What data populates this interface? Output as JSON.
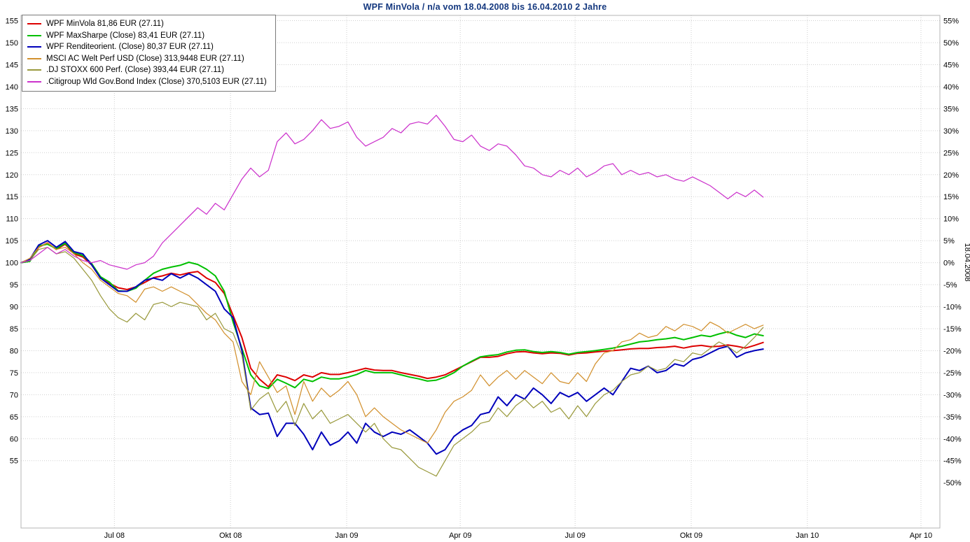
{
  "colors": {
    "title": "#14387f",
    "grid": "#cfcfcf",
    "plot_border": "#b4b4b4",
    "axis_text": "#000000",
    "legend_border": "#7a7a7a"
  },
  "chart_data": {
    "type": "line",
    "title": "WPF MinVola / n/a vom 18.04.2008 bis 16.04.2010 2 Jahre",
    "sampling": "weekly points, index normalized to 100 at 18.04.2008, data ends 27.11.2009",
    "x_axis": {
      "start_date": "18.04.2008",
      "end_date": "16.04.2010",
      "range_label": "2 Jahre",
      "total_days": 728,
      "tick_labels": [
        "Jul 08",
        "Okt 08",
        "Jan 09",
        "Apr 09",
        "Jul 09",
        "Okt 09",
        "Jan 10",
        "Apr 10"
      ],
      "tick_day_offsets": [
        74,
        166,
        258,
        348,
        439,
        531,
        623,
        713
      ]
    },
    "y_axis_left": {
      "min": 55,
      "max": 155,
      "step": 5
    },
    "y_axis_right": {
      "min": -50,
      "max": 55,
      "step": 5,
      "unit": "%",
      "reference_date": "18.04.2008"
    },
    "grid": true,
    "legend_position": "top-left",
    "series": [
      {
        "name": "WPF-MinVola",
        "legend": "WPF MinVola 81,86 EUR (27.11)",
        "color": "#dd0000",
        "width": 2,
        "values": [
          100,
          100.5,
          103.5,
          104.5,
          103.0,
          104.2,
          102.0,
          101.3,
          99.5,
          96.5,
          95.3,
          94.3,
          93.9,
          94.5,
          95.5,
          96.6,
          97.0,
          97.6,
          97.2,
          97.7,
          98.0,
          96.5,
          95.5,
          93.0,
          88.0,
          83.0,
          76.0,
          73.5,
          71.8,
          74.5,
          74.0,
          73.2,
          74.5,
          74.0,
          75.0,
          74.6,
          74.6,
          75.0,
          75.5,
          76.0,
          75.6,
          75.5,
          75.5,
          75.0,
          74.6,
          74.2,
          73.7,
          74.0,
          74.5,
          75.5,
          76.5,
          77.5,
          78.5,
          78.5,
          78.7,
          79.3,
          79.7,
          79.8,
          79.5,
          79.3,
          79.5,
          79.4,
          79.0,
          79.4,
          79.5,
          79.7,
          79.9,
          80.0,
          80.2,
          80.4,
          80.5,
          80.5,
          80.7,
          80.8,
          81.0,
          80.6,
          81.0,
          81.2,
          80.9,
          81.0,
          81.3,
          81.0,
          80.6,
          81.2,
          81.86
        ]
      },
      {
        "name": "WPF-MaxSharpe",
        "legend": "WPF MaxSharpe (Close) 83,41 EUR (27.11)",
        "color": "#00c000",
        "width": 2,
        "values": [
          100,
          100.3,
          103.8,
          104.2,
          103.2,
          104.4,
          102.3,
          101.6,
          99.8,
          96.8,
          95.6,
          93.6,
          93.5,
          94.2,
          96.0,
          97.6,
          98.5,
          99.0,
          99.4,
          100.1,
          99.6,
          98.5,
          97.0,
          93.5,
          86.5,
          80.5,
          74.5,
          72.0,
          71.4,
          73.5,
          72.6,
          71.6,
          73.5,
          73.0,
          74.0,
          73.6,
          73.6,
          74.0,
          74.6,
          75.5,
          75.0,
          75.0,
          75.0,
          74.5,
          74.0,
          73.6,
          73.1,
          73.3,
          74.0,
          75.0,
          76.5,
          77.6,
          78.6,
          78.9,
          79.1,
          79.7,
          80.1,
          80.2,
          79.8,
          79.6,
          79.8,
          79.6,
          79.2,
          79.6,
          79.8,
          80.0,
          80.3,
          80.6,
          81.0,
          81.5,
          82.0,
          82.2,
          82.5,
          82.7,
          83.0,
          82.5,
          83.0,
          83.5,
          83.2,
          83.8,
          84.3,
          83.5,
          83.0,
          83.8,
          83.41
        ]
      },
      {
        "name": "WPF-Renditeorient",
        "legend": "WPF Renditeorient. (Close) 80,37 EUR (27.11)",
        "color": "#0000bb",
        "width": 2,
        "values": [
          100,
          100.8,
          104.0,
          105.0,
          103.5,
          104.8,
          102.5,
          102.0,
          99.5,
          96.5,
          95.0,
          93.5,
          93.5,
          94.5,
          96.0,
          96.5,
          96.0,
          97.5,
          96.5,
          97.5,
          96.5,
          95.0,
          93.5,
          89.5,
          87.5,
          80.0,
          67.0,
          65.5,
          65.8,
          60.5,
          63.5,
          63.5,
          61.0,
          57.5,
          61.5,
          58.5,
          59.5,
          61.5,
          59.0,
          63.5,
          61.5,
          60.5,
          61.5,
          61.0,
          62.0,
          60.5,
          59.0,
          56.5,
          57.5,
          60.5,
          62.0,
          63.0,
          65.5,
          66.0,
          69.5,
          67.5,
          70.0,
          69.0,
          71.5,
          70.0,
          68.0,
          70.5,
          69.5,
          70.5,
          68.5,
          70.0,
          71.5,
          70.0,
          73.0,
          76.0,
          75.5,
          76.5,
          75.0,
          75.5,
          77.0,
          76.5,
          78.0,
          78.5,
          79.5,
          80.5,
          81.0,
          78.5,
          79.5,
          80.0,
          80.37
        ]
      },
      {
        "name": "MSCI-AC-Welt",
        "legend": "MSCI AC Welt Perf USD (Close) 313,9448 EUR (27.11)",
        "color": "#d2912f",
        "width": 1.25,
        "values": [
          100,
          101.0,
          103.5,
          104.5,
          103.0,
          103.5,
          102.0,
          100.0,
          98.5,
          96.0,
          94.5,
          93.0,
          92.5,
          91.0,
          94.0,
          94.5,
          93.5,
          94.5,
          93.5,
          92.5,
          90.5,
          88.5,
          87.0,
          84.0,
          82.0,
          73.0,
          70.0,
          77.5,
          74.0,
          70.5,
          72.0,
          65.5,
          73.0,
          68.5,
          71.5,
          69.5,
          71.0,
          73.0,
          70.0,
          65.0,
          67.0,
          65.0,
          63.5,
          62.0,
          61.0,
          60.0,
          59.0,
          62.0,
          66.0,
          68.5,
          69.5,
          71.0,
          74.5,
          72.0,
          74.0,
          75.5,
          73.5,
          75.5,
          74.0,
          72.5,
          75.0,
          73.0,
          72.5,
          75.0,
          73.0,
          77.0,
          79.5,
          80.0,
          82.0,
          82.5,
          84.0,
          83.0,
          83.5,
          85.5,
          84.5,
          86.0,
          85.5,
          84.5,
          86.5,
          85.5,
          84.0,
          85.0,
          86.0,
          85.0,
          85.8
        ]
      },
      {
        "name": "DJ-STOXX-600",
        "legend": ".DJ STOXX 600 Perf. (Close) 393,44 EUR (27.11)",
        "color": "#9a9a3e",
        "width": 1.25,
        "values": [
          100,
          100.5,
          103.0,
          103.5,
          102.0,
          102.5,
          101.0,
          98.5,
          96.0,
          92.5,
          89.5,
          87.5,
          86.5,
          88.5,
          87.0,
          90.5,
          91.0,
          90.0,
          91.0,
          90.5,
          90.0,
          87.0,
          88.5,
          85.0,
          84.0,
          79.0,
          66.5,
          69.0,
          70.5,
          66.0,
          68.5,
          63.0,
          68.0,
          64.5,
          66.5,
          63.5,
          64.5,
          65.5,
          63.5,
          61.5,
          63.5,
          60.0,
          58.0,
          57.5,
          55.5,
          53.5,
          52.5,
          51.5,
          55.0,
          58.5,
          60.0,
          61.5,
          63.5,
          64.0,
          67.0,
          65.0,
          67.5,
          69.0,
          67.0,
          68.5,
          66.0,
          67.0,
          64.5,
          67.5,
          65.0,
          68.0,
          70.0,
          71.0,
          73.0,
          74.5,
          75.0,
          76.5,
          75.5,
          76.0,
          78.0,
          77.5,
          79.5,
          79.0,
          80.5,
          82.0,
          81.0,
          79.5,
          81.0,
          83.0,
          85.3
        ]
      },
      {
        "name": "Citigroup-Wld-Gov-Bond",
        "legend": ".Citigroup Wld Gov.Bond Index (Close) 370,5103 EUR (27.11)",
        "color": "#cc33cc",
        "width": 1.25,
        "values": [
          100,
          100.5,
          102.0,
          103.5,
          102.0,
          103.0,
          101.5,
          100.5,
          100.0,
          100.5,
          99.5,
          99.0,
          98.5,
          99.5,
          100.0,
          101.5,
          104.5,
          106.5,
          108.5,
          110.5,
          112.5,
          111.0,
          113.5,
          112.0,
          115.5,
          119.0,
          121.5,
          119.5,
          121.0,
          127.5,
          129.5,
          127.0,
          128.0,
          130.0,
          132.5,
          130.5,
          131.0,
          132.0,
          128.5,
          126.5,
          127.5,
          128.5,
          130.5,
          129.5,
          131.5,
          132.0,
          131.5,
          133.5,
          131.0,
          128.0,
          127.5,
          129.0,
          126.5,
          125.5,
          127.0,
          126.5,
          124.5,
          122.0,
          121.5,
          120.0,
          119.5,
          121.0,
          120.0,
          121.5,
          119.5,
          120.5,
          122.0,
          122.5,
          120.0,
          121.0,
          120.0,
          120.5,
          119.5,
          120.0,
          119.0,
          118.5,
          119.5,
          118.5,
          117.5,
          116.0,
          114.5,
          116.0,
          115.0,
          116.5,
          114.9
        ]
      }
    ]
  }
}
